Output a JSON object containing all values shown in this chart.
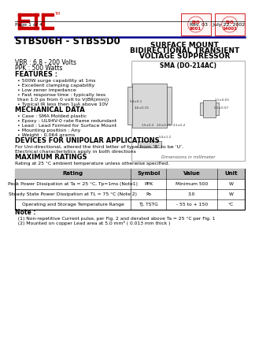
{
  "bg_color": "#ffffff",
  "logo_color": "#cc0000",
  "blue_line_color": "#00008B",
  "title_part": "STBS06H - STBS5D0",
  "title_right1": "SURFACE MOUNT",
  "title_right2": "BIDIRECTIONAL TRANSIENT",
  "title_right3": "VOLTAGE SUPPRESSOR",
  "vbr_line": "VBR : 6.8 - 200 Volts",
  "ppk_line": "PPK : 500 Watts",
  "pkg_label": "SMA (DO-214AC)",
  "features_title": "FEATURES :",
  "features": [
    "500W surge capability at 1ms",
    "Excellent clamping capability",
    "Low zener impedance",
    "Fast response time : typically less",
    "  than 1.0 ps from 0 volt to V(BR(min))",
    "Typical IR less then 1μA above 10V"
  ],
  "mech_title": "MECHANICAL DATA",
  "mech": [
    "Case : SMA Molded plastic",
    "Epoxy : UL94V-0 rate flame redundant",
    "Lead : Lead Formed for Surface Mount",
    "Mounting position : Any",
    "Weight : 0.064 grams"
  ],
  "devices_title": "DEVICES FOR UNIPOLAR APPLICATIONS",
  "devices_text1": "For Uni-directional, altered the third letter of type from ‘B’ to be ‘U’.",
  "devices_text2": "Electrical characteristics apply in both directions",
  "max_title": "MAXIMUM RATINGS",
  "max_subtitle": "Rating at 25 °C ambient temperature unless otherwise specified.",
  "table_headers": [
    "Rating",
    "Symbol",
    "Value",
    "Unit"
  ],
  "table_rows": [
    [
      "Peak Power Dissipation at Ta = 25 °C, Tp=1ms (Note1)",
      "PPK",
      "Minimum 500",
      "W"
    ],
    [
      "Steady State Power Dissipation at TL = 75 °C (Note 2)",
      "Po",
      "3.0",
      "W"
    ],
    [
      "Operating and Storage Temperature Range",
      "TJ, TSTG",
      "- 55 to + 150",
      "°C"
    ]
  ],
  "note_title": "Note :",
  "note1": "  (1) Non-repetitive Current pulse, per Fig. 2 and derated above Ta = 25 °C per Fig. 1",
  "note2": "  (2) Mounted on copper Lead area at 5.0 mm² ( 0.013 mm thick )",
  "page_left": "Page 1 of 4",
  "page_right": "Rev. 03 : July 22, 2002"
}
